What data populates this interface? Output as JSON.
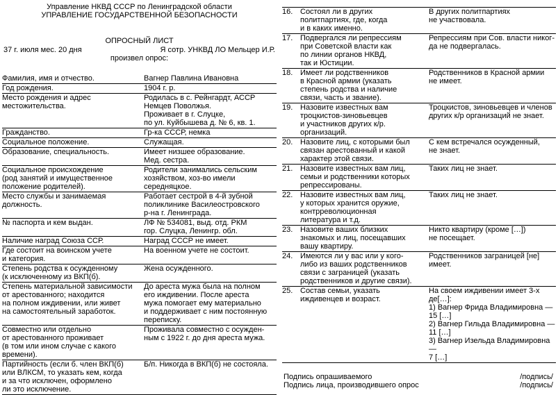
{
  "colors": {
    "text": "#000000",
    "background": "#ffffff",
    "rule": "#000000"
  },
  "header": {
    "org_line1": "Управление НКВД СССР по Ленинградской области",
    "org_line2": "УПРАВЛЕНИЕ ГОСУДАРСТВЕННОЙ БЕЗОПАСНОСТИ",
    "doc_title": "ОПРОСНЫЙ ЛИСТ",
    "date_line": "37 г. июля мес. 20 дня",
    "officer_line": "Я сотр. УНКВД ЛО Мельцер И.Р.",
    "conducted_line": "произвел опрос:"
  },
  "left_table": {
    "rows": [
      {
        "label": "Фамилия, имя и отчество.",
        "value": "Вагнер Павлина Ивановна"
      },
      {
        "label": "Год рождения.",
        "value": "1904 г. р."
      },
      {
        "label": "Место рождения и адрес\nместожительства.",
        "value": "Родилась в с. Рейнгардт, АССР\nНемцев Поволжья.\nПроживает в г. Слуцке,\nпо ул. Куйбышева д. № 6, кв. 1."
      },
      {
        "label": "Гражданство.",
        "value": "Гр-ка СССР, немка"
      },
      {
        "label": "Социальное положение.",
        "value": "Служащая."
      },
      {
        "label": "Образование, специальность.",
        "value": "Имеет низшее образование.\nМед. сестра."
      },
      {
        "label": "Социальное происхождение\n(род занятий и имущественное\nположение родителей).",
        "value": "Родители занимались сельским\nхозяйством, хоз-во имели\nсередняцкое."
      },
      {
        "label": "Место службы и занимаемая\nдолжность.",
        "value": "Работает сестрой в 4-й зубной\nполиклинике Василеостровского\nр-на г. Ленинграда."
      },
      {
        "label": "№ паспорта и кем выдан.",
        "value": "ЛФ № 534081, выд. отд. РКМ\nгор. Слуцка, Ленингр. обл."
      },
      {
        "label": "Наличие наград Союза ССР.",
        "value": "Наград СССР не имеет."
      },
      {
        "label": "Где состоит на воинском учете\nи категория.",
        "value": "На военном учете не состоит."
      },
      {
        "label": "Степень родства к осужденному\n(к исключенному из ВКП(б).",
        "value": "Жена осужденного."
      },
      {
        "label": "Степень материальной зависимости\nот арестованного; находится\nна полном иждивении, или живет\nна самостоятельный заработок.",
        "value": "До ареста мужа была на полном\nего иждивении. После ареста\nмужа помогает ему материально\nи поддерживает с ним постоянную\nпереписку."
      },
      {
        "label": "Совместно или отдельно\nот арестованного проживает\n(в том или ином случае с какого\nвремени).",
        "value": "Проживала совместно с осужден-\nным с 1922 г. до дня ареста мужа."
      },
      {
        "label": "Партийность (если б. член ВКП(б)\nили ВЛКСМ, то указать кем, когда\nи за что исключен, оформлено\nли это исключение.",
        "value": "Б/п. Никогда в ВКП(б) не состояла."
      }
    ]
  },
  "right_table": {
    "items": [
      {
        "num": "16.",
        "question": "Состоял ли в других\nполитпартиях, где, когда\nи в каких именно.",
        "answer": "В других политпартиях\nне участвовала."
      },
      {
        "num": "17.",
        "question": "Подвергался ли репрессиям\nпри Советской власти как\nпо линии органов НКВД,\nтак и Юстиции.",
        "answer": "Репрессиям при Сов. власти никог-\nда не подвергалась."
      },
      {
        "num": "18.",
        "question": "Имеет ли родственников\nв Красной армии (указать\nстепень родства и наличие\nсвязи, часть и звание).",
        "answer": "Родственников в Красной армии\nне имеет."
      },
      {
        "num": "19.",
        "question": "Назовите известных вам\nтроцкистов-зиновьевцев\nи участников других к/р.\nорганизаций.",
        "answer": "Троцкистов, зиновьевцев и членов\nдругих к/р организаций не знает."
      },
      {
        "num": "20.",
        "question": "Назовите лиц, с которыми был\nсвязан арестованный и какой\nхарактер этой связи.",
        "answer": "С кем встречался осужденный,\nне знает."
      },
      {
        "num": "21.",
        "question": "Назовите известных вам лиц,\nсемьи и родственники которых\nрепрессированы.",
        "answer": "Таких лиц не знает."
      },
      {
        "num": "22.",
        "question": "Назовите известных вам лиц,\nу которых хранится оружие,\nконтрреволюционная\nлитература и т.д.",
        "answer": "Таких лиц не знает."
      },
      {
        "num": "23.",
        "question": "Назовите ваших близких\nзнакомых и лиц, посещавших\nвашу квартиру.",
        "answer": "Никто квартиру (кроме […])\nне посещает."
      },
      {
        "num": "24.",
        "question": "Имеются ли у вас или у кого-\nлибо из ваших родственников\nсвязи с заграницей (указать\nродственников и другие связи).",
        "answer": "Родственников заграницей [не]\nимеет."
      },
      {
        "num": "25.",
        "question": "Состав семьи, указать\nиждивенцев и возраст.",
        "answer": "На своем иждивении имеет 3-х де[…]:\n1) Вагнер Фрида Владимировна —\n15 […]\n2) Вагнер Гильда Владимировна —\n11 […]\n3) Вагнер Изельда Владимировна —\n7 […]"
      }
    ]
  },
  "signatures": {
    "rows": [
      {
        "label": "Подпись опрашиваемого",
        "value": "/подпись/"
      },
      {
        "label": "Подпись лица, производившего опрос",
        "value": "/подпись/"
      }
    ]
  }
}
